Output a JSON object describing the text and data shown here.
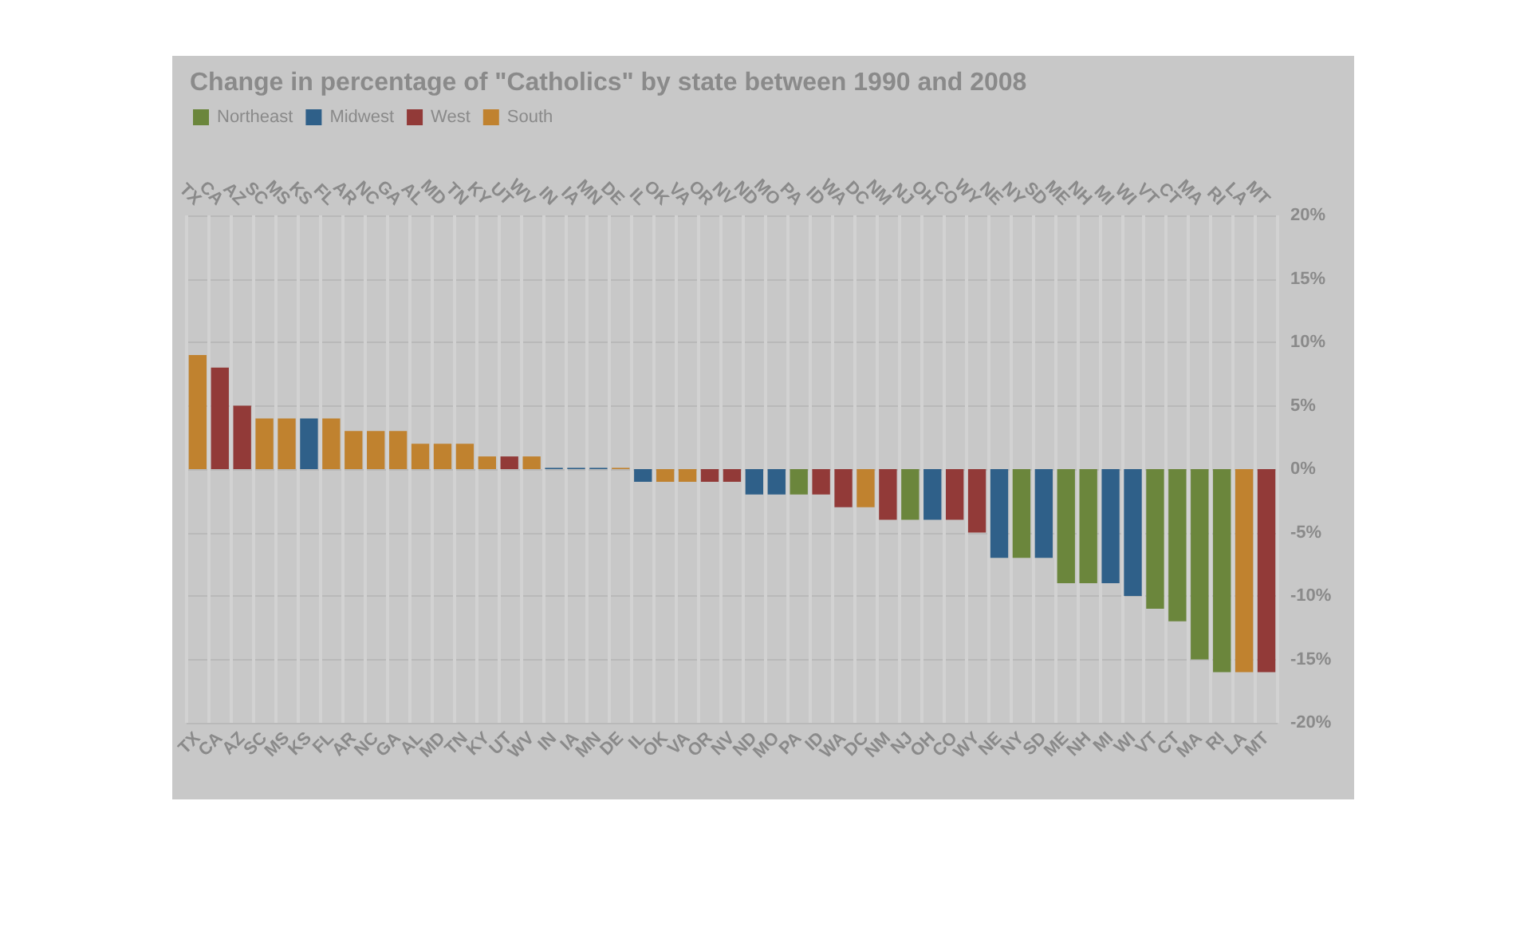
{
  "chart_data": {
    "type": "bar",
    "title": "Change in percentage of \"Catholics\" by state between 1990 and 2008",
    "categories": [
      "TX",
      "CA",
      "AZ",
      "SC",
      "MS",
      "KS",
      "FL",
      "AR",
      "NC",
      "GA",
      "AL",
      "MD",
      "TN",
      "KY",
      "UT",
      "WV",
      "IN",
      "IA",
      "MN",
      "DE",
      "IL",
      "OK",
      "VA",
      "OR",
      "NV",
      "ND",
      "MO",
      "PA",
      "ID",
      "WA",
      "DC",
      "NM",
      "NJ",
      "OH",
      "CO",
      "WY",
      "NE",
      "NY",
      "SD",
      "ME",
      "NH",
      "MI",
      "WI",
      "VT",
      "CT",
      "MA",
      "RI",
      "LA",
      "MT"
    ],
    "series": [
      {
        "name": "Northeast",
        "color": "#6b863c",
        "values": [
          null,
          null,
          null,
          null,
          null,
          null,
          null,
          null,
          null,
          null,
          null,
          null,
          null,
          null,
          null,
          null,
          null,
          null,
          null,
          null,
          null,
          null,
          null,
          null,
          null,
          null,
          null,
          -2,
          null,
          null,
          null,
          null,
          -4,
          null,
          null,
          null,
          null,
          -7,
          null,
          -9,
          -9,
          null,
          null,
          -11,
          -12,
          -15,
          -16,
          null,
          null
        ]
      },
      {
        "name": "Midwest",
        "color": "#2f6089",
        "values": [
          null,
          null,
          null,
          null,
          null,
          4,
          null,
          null,
          null,
          null,
          null,
          null,
          null,
          null,
          null,
          null,
          0.1,
          0.1,
          0.1,
          null,
          -1,
          null,
          null,
          null,
          null,
          -2,
          -2,
          null,
          null,
          null,
          null,
          null,
          null,
          -4,
          null,
          null,
          -7,
          null,
          -7,
          null,
          null,
          -9,
          -10,
          null,
          null,
          null,
          null,
          null,
          null
        ]
      },
      {
        "name": "West",
        "color": "#923a38",
        "values": [
          null,
          8,
          5,
          null,
          null,
          null,
          null,
          null,
          null,
          null,
          null,
          null,
          null,
          null,
          1,
          null,
          null,
          null,
          null,
          null,
          null,
          null,
          null,
          -1,
          -1,
          null,
          null,
          null,
          -2,
          -3,
          null,
          -4,
          null,
          null,
          -4,
          -5,
          null,
          null,
          null,
          null,
          null,
          null,
          null,
          null,
          null,
          null,
          null,
          null,
          -16
        ]
      },
      {
        "name": "South",
        "color": "#c0822f",
        "values": [
          9,
          null,
          null,
          4,
          4,
          null,
          4,
          3,
          3,
          3,
          2,
          2,
          2,
          1,
          null,
          1,
          null,
          null,
          null,
          0.1,
          null,
          -1,
          -1,
          null,
          null,
          null,
          null,
          null,
          null,
          null,
          -3,
          null,
          null,
          null,
          null,
          null,
          null,
          null,
          null,
          null,
          null,
          null,
          null,
          null,
          null,
          null,
          null,
          -16,
          null
        ]
      }
    ],
    "ylim": [
      -20,
      20
    ],
    "yticks": [
      {
        "value": -20,
        "label": "-20%"
      },
      {
        "value": -15,
        "label": "-15%"
      },
      {
        "value": -10,
        "label": "-10%"
      },
      {
        "value": -5,
        "label": "-5%"
      },
      {
        "value": 0,
        "label": "0%"
      },
      {
        "value": 5,
        "label": "5%"
      },
      {
        "value": 10,
        "label": "10%"
      },
      {
        "value": 15,
        "label": "15%"
      },
      {
        "value": 20,
        "label": "20%"
      }
    ],
    "grid": true,
    "legend": "top left"
  }
}
